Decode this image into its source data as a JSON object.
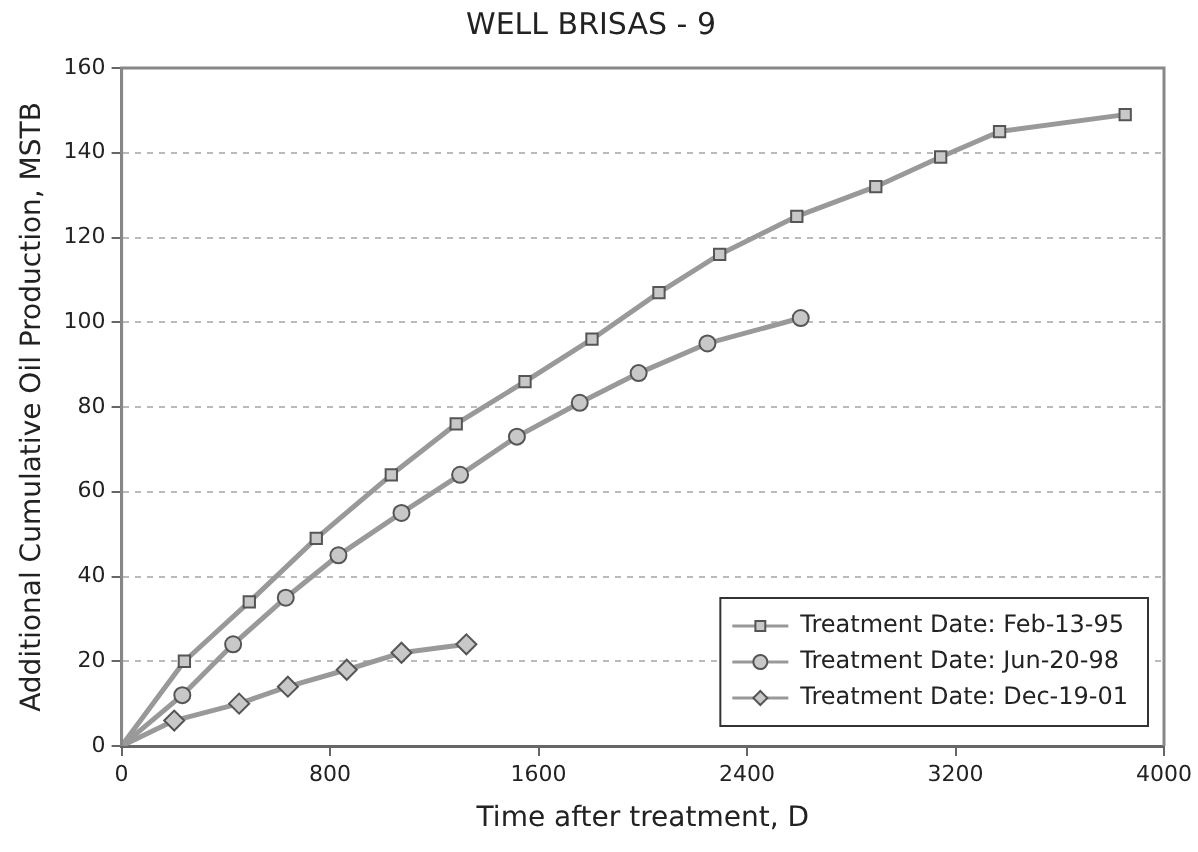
{
  "chart_data": {
    "type": "line",
    "title": "WELL BRISAS - 9",
    "xlabel": "Time after treatment, D",
    "ylabel": "Additional Cumulative Oil Production, MSTB",
    "xlim": [
      0,
      4000
    ],
    "xticks": [
      0,
      800,
      1600,
      2400,
      3200,
      4000
    ],
    "ylim": [
      0,
      160
    ],
    "yticks": [
      0,
      20,
      40,
      60,
      80,
      100,
      120,
      140,
      160
    ],
    "grid": "y",
    "legend": "bottom right",
    "line_style": "solid",
    "series": [
      {
        "name": "Treatment Date: Feb-13-95",
        "color": "#999999",
        "marker": "square",
        "x": [
          0,
          241,
          490,
          747,
          1035,
          1284,
          1548,
          1805,
          2062,
          2295,
          2591,
          2894,
          3143,
          3369,
          3851
        ],
        "values": [
          0,
          20,
          34,
          49,
          64,
          76,
          86,
          96,
          107,
          116,
          125,
          132,
          139,
          145,
          149
        ]
      },
      {
        "name": "Treatment Date: Jun-20-98",
        "color": "#999999",
        "marker": "circle",
        "x": [
          0,
          233,
          428,
          630,
          832,
          1074,
          1299,
          1517,
          1758,
          1984,
          2248,
          2606
        ],
        "values": [
          0,
          12,
          24,
          35,
          45,
          55,
          64,
          73,
          81,
          88,
          95,
          101
        ]
      },
      {
        "name": "Treatment Date: Dec-19-01",
        "color": "#999999",
        "marker": "diamond",
        "x": [
          0,
          202,
          451,
          638,
          864,
          1074,
          1323
        ],
        "values": [
          0,
          6,
          10,
          14,
          18,
          22,
          24
        ]
      }
    ]
  }
}
